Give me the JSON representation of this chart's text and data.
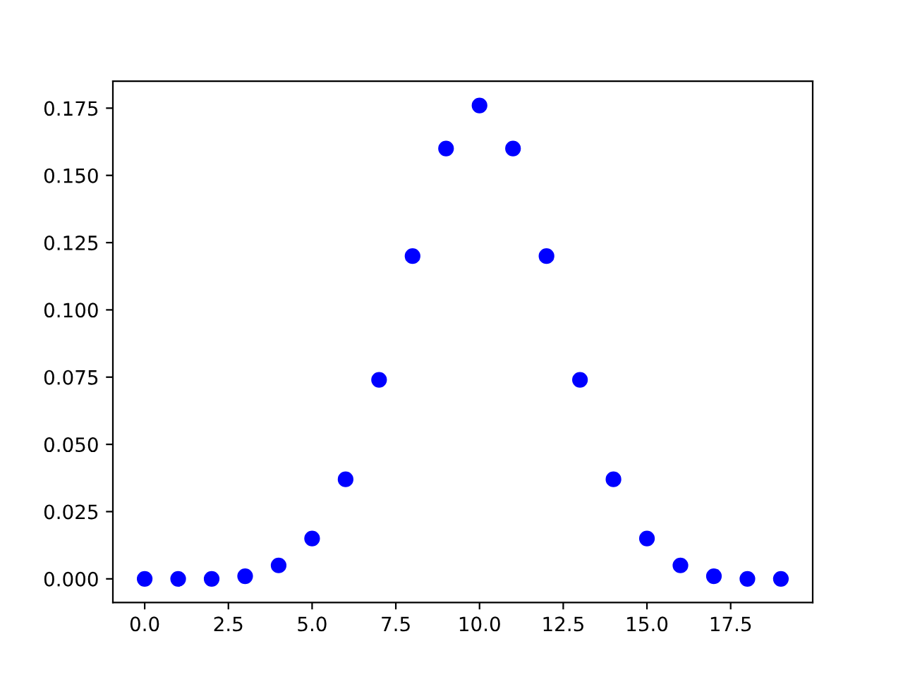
{
  "chart_data": {
    "type": "scatter",
    "x": [
      0,
      1,
      2,
      3,
      4,
      5,
      6,
      7,
      8,
      9,
      10,
      11,
      12,
      13,
      14,
      15,
      16,
      17,
      18,
      19
    ],
    "series": [
      {
        "color": "#0000ff",
        "values": [
          0.0,
          0.0,
          0.0,
          0.001,
          0.005,
          0.015,
          0.037,
          0.074,
          0.12,
          0.16,
          0.176,
          0.16,
          0.12,
          0.074,
          0.037,
          0.015,
          0.005,
          0.001,
          0.0,
          0.0
        ]
      }
    ],
    "marker": "circle",
    "xlim": [
      -0.95,
      19.95
    ],
    "xticks": [
      {
        "value": 0,
        "label": "0.0"
      },
      2.5,
      {
        "value": 5,
        "label": "5.0"
      },
      7.5,
      {
        "value": 10,
        "label": "10.0"
      },
      12.5,
      {
        "value": 15,
        "label": "15.0"
      },
      17.5
    ],
    "ylim": [
      -0.0088,
      0.185
    ],
    "yticks": [
      {
        "value": 0,
        "label": "0.000"
      },
      0.025,
      {
        "value": 0.05,
        "label": "0.050"
      },
      0.075,
      {
        "value": 0.1,
        "label": "0.100"
      },
      0.125,
      {
        "value": 0.15,
        "label": "0.150"
      },
      0.175
    ],
    "grid": false,
    "legend": false
  }
}
